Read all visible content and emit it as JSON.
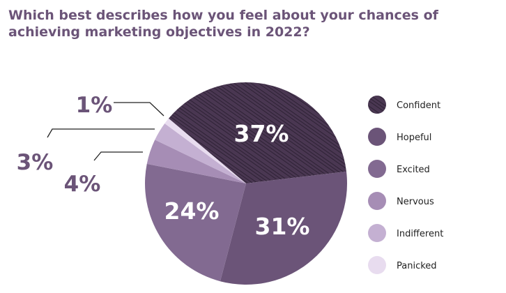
{
  "chart_data": {
    "type": "pie",
    "title": "Which best describes how you feel about your chances of achieving marketing objectives in 2022?",
    "categories": [
      "Confident",
      "Hopeful",
      "Excited",
      "Nervous",
      "Indifferent",
      "Panicked"
    ],
    "values": [
      37,
      31,
      24,
      4,
      3,
      1
    ],
    "labels": [
      "37%",
      "31%",
      "24%",
      "4%",
      "3%",
      "1%"
    ],
    "colors": [
      "#4a3752",
      "#6b5478",
      "#826a91",
      "#a68db5",
      "#c4b0d2",
      "#e8dcef"
    ],
    "legend_position": "right"
  }
}
